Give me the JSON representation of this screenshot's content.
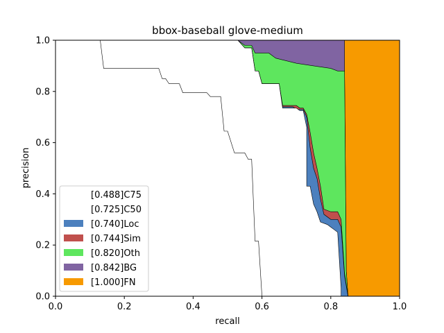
{
  "chart_data": {
    "type": "area",
    "title": "bbox-baseball glove-medium",
    "xlabel": "recall",
    "ylabel": "precision",
    "xlim": [
      0,
      1
    ],
    "ylim": [
      0,
      1
    ],
    "xticks": [
      "0.0",
      "0.2",
      "0.4",
      "0.6",
      "0.8",
      "1.0"
    ],
    "yticks": [
      "0.0",
      "0.2",
      "0.4",
      "0.6",
      "0.8",
      "1.0"
    ],
    "legend_position": "lower-left",
    "grid": false,
    "series": [
      {
        "name": "[0.488]C75",
        "color": "#ffffff",
        "points": [
          [
            0,
            1
          ],
          [
            0.13,
            1
          ],
          [
            0.14,
            0.89
          ],
          [
            0.3,
            0.89
          ],
          [
            0.31,
            0.85
          ],
          [
            0.32,
            0.85
          ],
          [
            0.33,
            0.83
          ],
          [
            0.36,
            0.83
          ],
          [
            0.37,
            0.795
          ],
          [
            0.44,
            0.795
          ],
          [
            0.45,
            0.78
          ],
          [
            0.48,
            0.78
          ],
          [
            0.49,
            0.645
          ],
          [
            0.5,
            0.645
          ],
          [
            0.52,
            0.56
          ],
          [
            0.55,
            0.56
          ],
          [
            0.56,
            0.535
          ],
          [
            0.57,
            0.535
          ],
          [
            0.58,
            0.215
          ],
          [
            0.59,
            0.215
          ],
          [
            0.6,
            0
          ]
        ]
      },
      {
        "name": "[0.725]C50",
        "color": "#ffffff",
        "points": [
          [
            0,
            1
          ],
          [
            0.53,
            1
          ],
          [
            0.55,
            0.97
          ],
          [
            0.57,
            0.97
          ],
          [
            0.58,
            0.88
          ],
          [
            0.59,
            0.88
          ],
          [
            0.6,
            0.83
          ],
          [
            0.65,
            0.83
          ],
          [
            0.66,
            0.735
          ],
          [
            0.7,
            0.735
          ],
          [
            0.71,
            0.725
          ],
          [
            0.72,
            0.725
          ],
          [
            0.73,
            0.66
          ],
          [
            0.73,
            0.43
          ],
          [
            0.74,
            0.43
          ],
          [
            0.75,
            0.36
          ],
          [
            0.76,
            0.33
          ],
          [
            0.77,
            0.29
          ],
          [
            0.79,
            0.28
          ],
          [
            0.8,
            0.27
          ],
          [
            0.81,
            0.26
          ],
          [
            0.82,
            0.25
          ],
          [
            0.83,
            0.03
          ],
          [
            0.83,
            0
          ]
        ]
      },
      {
        "name": "[0.740]Loc",
        "color": "#4c80be",
        "points": [
          [
            0,
            1
          ],
          [
            0.53,
            1
          ],
          [
            0.55,
            0.97
          ],
          [
            0.57,
            0.97
          ],
          [
            0.58,
            0.88
          ],
          [
            0.59,
            0.88
          ],
          [
            0.6,
            0.83
          ],
          [
            0.65,
            0.83
          ],
          [
            0.66,
            0.74
          ],
          [
            0.69,
            0.74
          ],
          [
            0.7,
            0.73
          ],
          [
            0.72,
            0.73
          ],
          [
            0.73,
            0.7
          ],
          [
            0.74,
            0.58
          ],
          [
            0.75,
            0.5
          ],
          [
            0.76,
            0.46
          ],
          [
            0.77,
            0.38
          ],
          [
            0.78,
            0.32
          ],
          [
            0.8,
            0.3
          ],
          [
            0.82,
            0.3
          ],
          [
            0.83,
            0.27
          ],
          [
            0.84,
            0.08
          ],
          [
            0.85,
            0
          ]
        ]
      },
      {
        "name": "[0.744]Sim",
        "color": "#c0504d",
        "points": [
          [
            0,
            1
          ],
          [
            0.53,
            1
          ],
          [
            0.55,
            0.97
          ],
          [
            0.57,
            0.97
          ],
          [
            0.58,
            0.88
          ],
          [
            0.59,
            0.88
          ],
          [
            0.6,
            0.83
          ],
          [
            0.65,
            0.83
          ],
          [
            0.66,
            0.745
          ],
          [
            0.7,
            0.745
          ],
          [
            0.71,
            0.735
          ],
          [
            0.72,
            0.735
          ],
          [
            0.73,
            0.71
          ],
          [
            0.74,
            0.64
          ],
          [
            0.75,
            0.56
          ],
          [
            0.76,
            0.5
          ],
          [
            0.77,
            0.43
          ],
          [
            0.78,
            0.34
          ],
          [
            0.8,
            0.33
          ],
          [
            0.82,
            0.33
          ],
          [
            0.83,
            0.3
          ],
          [
            0.84,
            0.09
          ],
          [
            0.85,
            0
          ]
        ]
      },
      {
        "name": "[0.820]Oth",
        "color": "#5ee65e",
        "points": [
          [
            0,
            1
          ],
          [
            0.53,
            1
          ],
          [
            0.55,
            0.98
          ],
          [
            0.57,
            0.98
          ],
          [
            0.58,
            0.95
          ],
          [
            0.62,
            0.95
          ],
          [
            0.64,
            0.93
          ],
          [
            0.7,
            0.91
          ],
          [
            0.75,
            0.9
          ],
          [
            0.8,
            0.89
          ],
          [
            0.82,
            0.88
          ],
          [
            0.84,
            0.88
          ],
          [
            0.845,
            0.1
          ],
          [
            0.85,
            0
          ]
        ]
      },
      {
        "name": "[0.842]BG",
        "color": "#8064a2",
        "points": [
          [
            0,
            1
          ],
          [
            0.84,
            1
          ],
          [
            0.84,
            0.88
          ],
          [
            0.845,
            0.1
          ],
          [
            0.85,
            0
          ]
        ]
      },
      {
        "name": "[1.000]FN",
        "color": "#f79a00",
        "points": [
          [
            0,
            1
          ],
          [
            1,
            1
          ],
          [
            1,
            0
          ]
        ]
      }
    ]
  }
}
